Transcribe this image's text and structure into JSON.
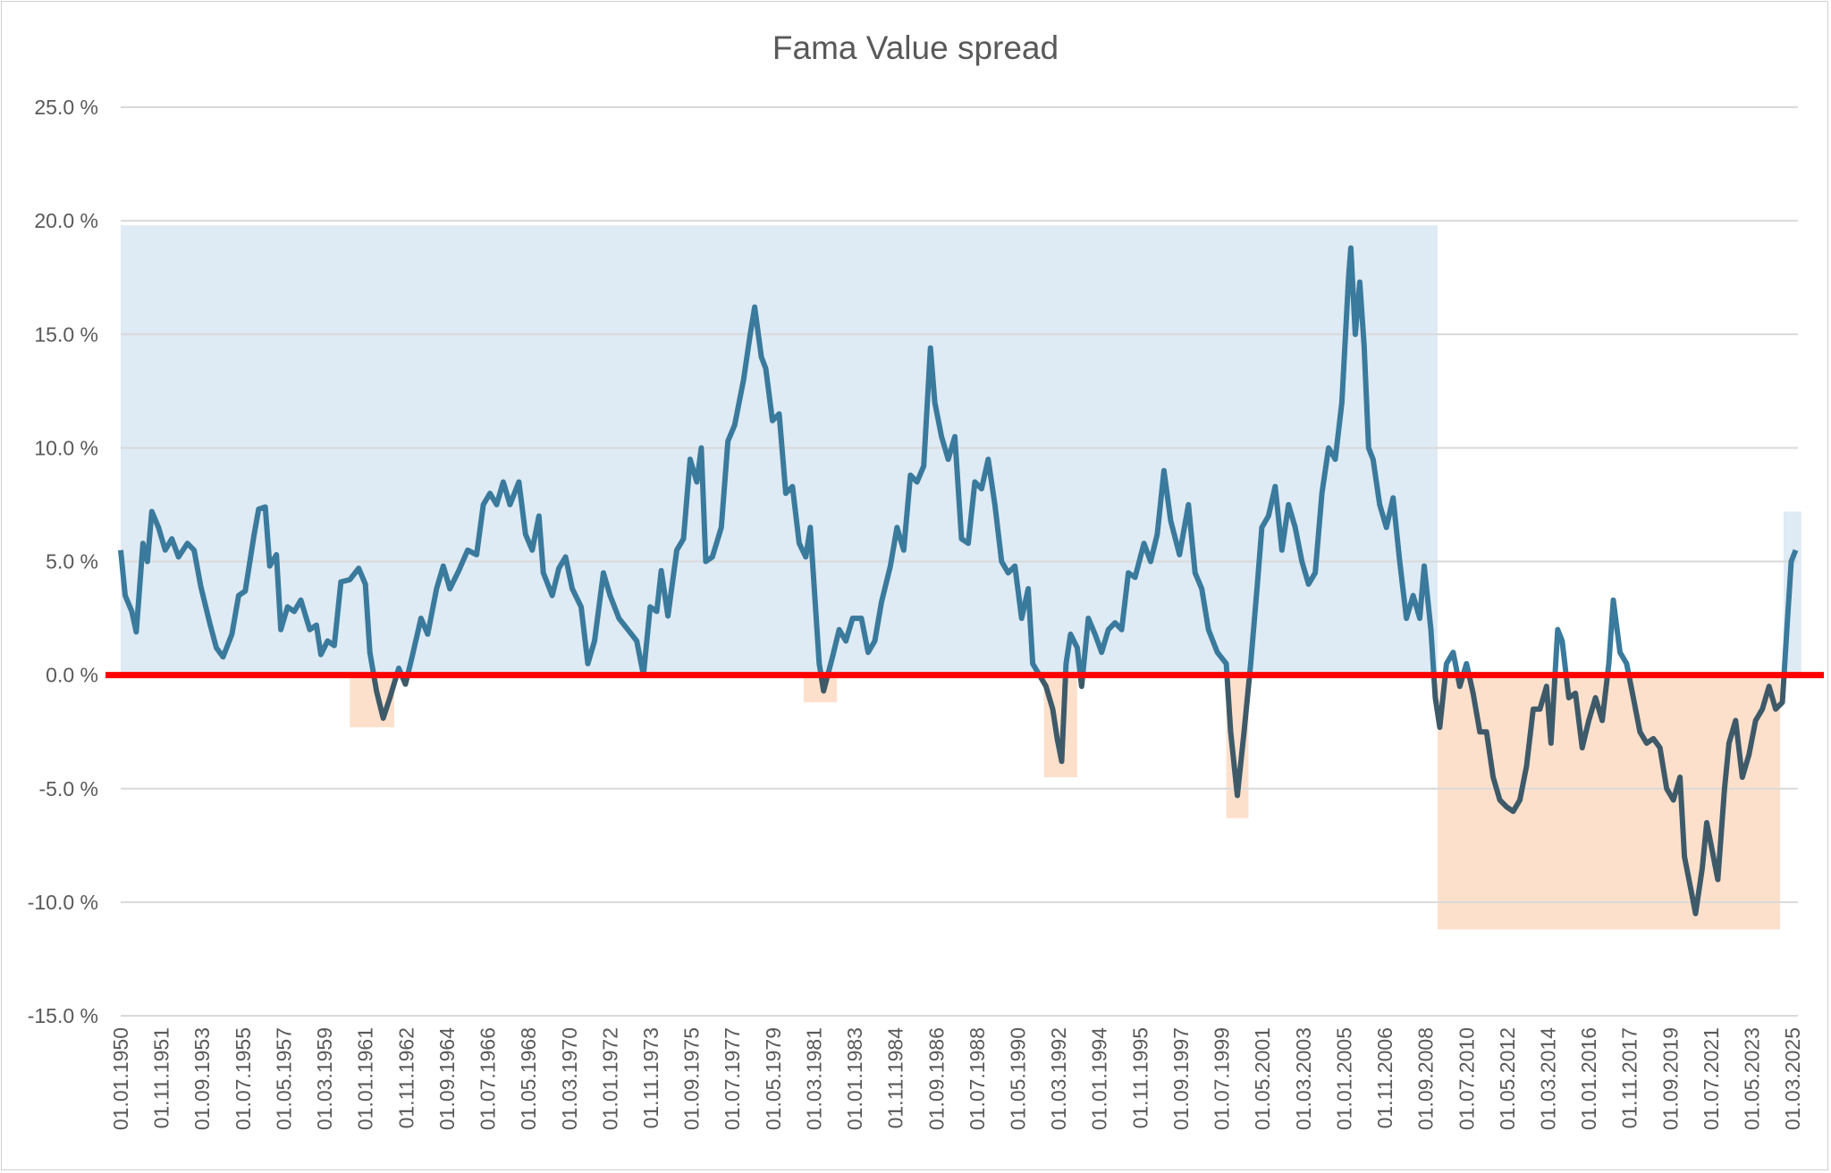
{
  "chart_data": {
    "type": "line",
    "title": "Fama Value spread",
    "xlabel": "",
    "ylabel": "",
    "ylim": [
      -15,
      25
    ],
    "xlim": [
      1950.0,
      2025.4
    ],
    "y_ticks": [
      25,
      20,
      15,
      10,
      5,
      0,
      -5,
      -10,
      -15
    ],
    "y_tick_labels": [
      "25.0 %",
      "20.0 %",
      "15.0 %",
      "10.0 %",
      "5.0 %",
      "0.0 %",
      "-5.0 %",
      "-10.0 %",
      "-15.0 %"
    ],
    "x_tick_labels": [
      "01.01.1950",
      "01.11.1951",
      "01.09.1953",
      "01.07.1955",
      "01.05.1957",
      "01.03.1959",
      "01.01.1961",
      "01.11.1962",
      "01.09.1964",
      "01.07.1966",
      "01.05.1968",
      "01.03.1970",
      "01.01.1972",
      "01.11.1973",
      "01.09.1975",
      "01.07.1977",
      "01.05.1979",
      "01.03.1981",
      "01.01.1983",
      "01.11.1984",
      "01.09.1986",
      "01.07.1988",
      "01.05.1990",
      "01.03.1992",
      "01.01.1994",
      "01.11.1995",
      "01.09.1997",
      "01.07.1999",
      "01.05.2001",
      "01.03.2003",
      "01.01.2005",
      "01.11.2006",
      "01.09.2008",
      "01.07.2010",
      "01.05.2012",
      "01.03.2014",
      "01.01.2016",
      "01.11.2017",
      "01.09.2019",
      "01.07.2021",
      "01.05.2023",
      "01.03.2025"
    ],
    "grid": true,
    "reference_line": {
      "value": 0,
      "color": "#FF0000"
    },
    "colors": {
      "line_positive": "#3A7A9C",
      "line_negative": "#3E5A69",
      "shade_positive": "#DEEAF4",
      "shade_negative": "#FDE0CC",
      "grid": "#D9D9D9",
      "text": "#595959"
    },
    "shaded_regions": [
      {
        "kind": "positive",
        "from": 1950.0,
        "to": 2009.2,
        "y0": 0,
        "y1": 19.8
      },
      {
        "kind": "positive",
        "from": 2024.75,
        "to": 2025.55,
        "y0": 0,
        "y1": 7.2
      },
      {
        "kind": "negative",
        "from": 1960.3,
        "to": 1962.3,
        "y0": 0,
        "y1": -2.3
      },
      {
        "kind": "negative",
        "from": 1980.7,
        "to": 1982.2,
        "y0": 0,
        "y1": -1.2
      },
      {
        "kind": "negative",
        "from": 1991.5,
        "to": 1993.0,
        "y0": 0,
        "y1": -4.5
      },
      {
        "kind": "negative",
        "from": 1999.7,
        "to": 2000.7,
        "y0": 0,
        "y1": -6.3
      },
      {
        "kind": "negative",
        "from": 2009.2,
        "to": 2024.6,
        "y0": 0,
        "y1": -11.2
      }
    ],
    "series": [
      {
        "name": "Fama Value spread",
        "x": [
          1950.0,
          1950.2,
          1950.5,
          1950.7,
          1951.0,
          1951.2,
          1951.4,
          1951.7,
          1952.0,
          1952.3,
          1952.6,
          1953.0,
          1953.3,
          1953.6,
          1954.0,
          1954.3,
          1954.6,
          1955.0,
          1955.3,
          1955.6,
          1956.0,
          1956.2,
          1956.5,
          1956.7,
          1957.0,
          1957.2,
          1957.5,
          1957.8,
          1958.1,
          1958.5,
          1958.8,
          1959.0,
          1959.3,
          1959.6,
          1959.9,
          1960.3,
          1960.7,
          1961.0,
          1961.2,
          1961.5,
          1961.8,
          1962.1,
          1962.5,
          1962.8,
          1963.1,
          1963.5,
          1963.8,
          1964.2,
          1964.5,
          1964.8,
          1965.2,
          1965.6,
          1966.0,
          1966.3,
          1966.6,
          1966.9,
          1967.2,
          1967.5,
          1967.9,
          1968.2,
          1968.5,
          1968.8,
          1969.0,
          1969.4,
          1969.7,
          1970.0,
          1970.3,
          1970.7,
          1971.0,
          1971.3,
          1971.7,
          1972.0,
          1972.4,
          1972.8,
          1973.2,
          1973.5,
          1973.8,
          1974.1,
          1974.3,
          1974.6,
          1975.0,
          1975.3,
          1975.6,
          1975.9,
          1976.1,
          1976.3,
          1976.6,
          1977.0,
          1977.3,
          1977.6,
          1978.0,
          1978.3,
          1978.5,
          1978.8,
          1979.0,
          1979.3,
          1979.6,
          1979.9,
          1980.2,
          1980.5,
          1980.8,
          1981.0,
          1981.2,
          1981.4,
          1981.6,
          1982.0,
          1982.3,
          1982.6,
          1982.9,
          1983.3,
          1983.6,
          1983.9,
          1984.2,
          1984.6,
          1984.9,
          1985.2,
          1985.5,
          1985.8,
          1986.1,
          1986.4,
          1986.6,
          1986.9,
          1987.2,
          1987.5,
          1987.8,
          1988.1,
          1988.4,
          1988.7,
          1989.0,
          1989.3,
          1989.6,
          1989.9,
          1990.2,
          1990.5,
          1990.8,
          1991.0,
          1991.3,
          1991.6,
          1991.9,
          1992.1,
          1992.3,
          1992.5,
          1992.7,
          1993.0,
          1993.2,
          1993.5,
          1993.8,
          1994.1,
          1994.4,
          1994.7,
          1995.0,
          1995.3,
          1995.6,
          1996.0,
          1996.3,
          1996.6,
          1996.9,
          1997.2,
          1997.6,
          1998.0,
          1998.3,
          1998.6,
          1998.9,
          1999.3,
          1999.7,
          1999.9,
          2000.2,
          2000.5,
          2000.8,
          2001.1,
          2001.3,
          2001.6,
          2001.9,
          2002.2,
          2002.5,
          2002.8,
          2003.1,
          2003.4,
          2003.7,
          2004.0,
          2004.3,
          2004.6,
          2004.9,
          2005.2,
          2005.3,
          2005.5,
          2005.7,
          2005.9,
          2006.1,
          2006.3,
          2006.6,
          2006.9,
          2007.2,
          2007.5,
          2007.8,
          2008.1,
          2008.4,
          2008.6,
          2008.9,
          2009.1,
          2009.3,
          2009.6,
          2009.9,
          2010.2,
          2010.5,
          2010.8,
          2011.1,
          2011.4,
          2011.7,
          2012.0,
          2012.3,
          2012.6,
          2012.9,
          2013.2,
          2013.5,
          2013.8,
          2014.1,
          2014.3,
          2014.6,
          2014.8,
          2015.1,
          2015.4,
          2015.7,
          2016.0,
          2016.3,
          2016.6,
          2016.9,
          2017.1,
          2017.4,
          2017.7,
          2018.0,
          2018.3,
          2018.6,
          2018.9,
          2019.2,
          2019.5,
          2019.8,
          2020.1,
          2020.3,
          2020.6,
          2020.8,
          2021.1,
          2021.3,
          2021.5,
          2021.8,
          2022.1,
          2022.3,
          2022.6,
          2022.9,
          2023.2,
          2023.5,
          2023.8,
          2024.1,
          2024.4,
          2024.7,
          2024.9,
          2025.1,
          2025.3
        ],
        "values": [
          5.5,
          3.5,
          2.8,
          1.9,
          5.8,
          5.0,
          7.2,
          6.5,
          5.5,
          6.0,
          5.2,
          5.8,
          5.5,
          3.9,
          2.3,
          1.2,
          0.8,
          1.8,
          3.5,
          3.7,
          6.2,
          7.3,
          7.4,
          4.8,
          5.3,
          2.0,
          3.0,
          2.8,
          3.3,
          2.0,
          2.2,
          0.9,
          1.5,
          1.3,
          4.1,
          4.2,
          4.7,
          4.0,
          1.0,
          -0.7,
          -1.9,
          -1.0,
          0.3,
          -0.4,
          0.8,
          2.5,
          1.8,
          3.8,
          4.8,
          3.8,
          4.6,
          5.5,
          5.3,
          7.5,
          8.0,
          7.5,
          8.5,
          7.5,
          8.5,
          6.2,
          5.5,
          7.0,
          4.5,
          3.5,
          4.7,
          5.2,
          3.8,
          3.0,
          0.5,
          1.5,
          4.5,
          3.5,
          2.5,
          2.0,
          1.5,
          0.0,
          3.0,
          2.8,
          4.6,
          2.6,
          5.5,
          6.0,
          9.5,
          8.5,
          10.0,
          5.0,
          5.2,
          6.5,
          10.3,
          11.0,
          13.0,
          15.0,
          16.2,
          14.0,
          13.5,
          11.2,
          11.5,
          8.0,
          8.3,
          5.8,
          5.2,
          6.5,
          3.5,
          0.5,
          -0.7,
          0.8,
          2.0,
          1.5,
          2.5,
          2.5,
          1.0,
          1.5,
          3.2,
          4.8,
          6.5,
          5.5,
          8.8,
          8.5,
          9.2,
          14.4,
          12.0,
          10.5,
          9.5,
          10.5,
          6.0,
          5.8,
          8.5,
          8.2,
          9.5,
          7.5,
          5.0,
          4.5,
          4.8,
          2.5,
          3.8,
          0.5,
          0.0,
          -0.5,
          -1.5,
          -2.8,
          -3.8,
          0.5,
          1.8,
          1.2,
          -0.5,
          2.5,
          1.8,
          1.0,
          2.0,
          2.3,
          2.0,
          4.5,
          4.3,
          5.8,
          5.0,
          6.2,
          9.0,
          6.8,
          5.3,
          7.5,
          4.5,
          3.8,
          2.0,
          1.0,
          0.5,
          -2.5,
          -5.3,
          -2.5,
          0.5,
          4.0,
          6.5,
          7.0,
          8.3,
          5.5,
          7.5,
          6.5,
          5.0,
          4.0,
          4.5,
          8.0,
          10.0,
          9.5,
          12.0,
          17.5,
          18.8,
          15.0,
          17.3,
          14.5,
          10.0,
          9.5,
          7.5,
          6.5,
          7.8,
          5.0,
          2.5,
          3.5,
          2.5,
          4.8,
          2.0,
          -1.0,
          -2.3,
          0.5,
          1.0,
          -0.5,
          0.5,
          -0.8,
          -2.5,
          -2.5,
          -4.5,
          -5.5,
          -5.8,
          -6.0,
          -5.5,
          -4.0,
          -1.5,
          -1.5,
          -0.5,
          -3.0,
          2.0,
          1.5,
          -1.0,
          -0.8,
          -3.2,
          -2.0,
          -1.0,
          -2.0,
          0.5,
          3.3,
          1.0,
          0.5,
          -1.0,
          -2.5,
          -3.0,
          -2.8,
          -3.2,
          -5.0,
          -5.5,
          -4.5,
          -8.0,
          -9.5,
          -10.5,
          -8.5,
          -6.5,
          -7.5,
          -9.0,
          -5.0,
          -3.0,
          -2.0,
          -4.5,
          -3.5,
          -2.0,
          -1.5,
          -0.5,
          -1.5,
          -1.2,
          2.0,
          5.0,
          5.5
        ]
      }
    ]
  }
}
